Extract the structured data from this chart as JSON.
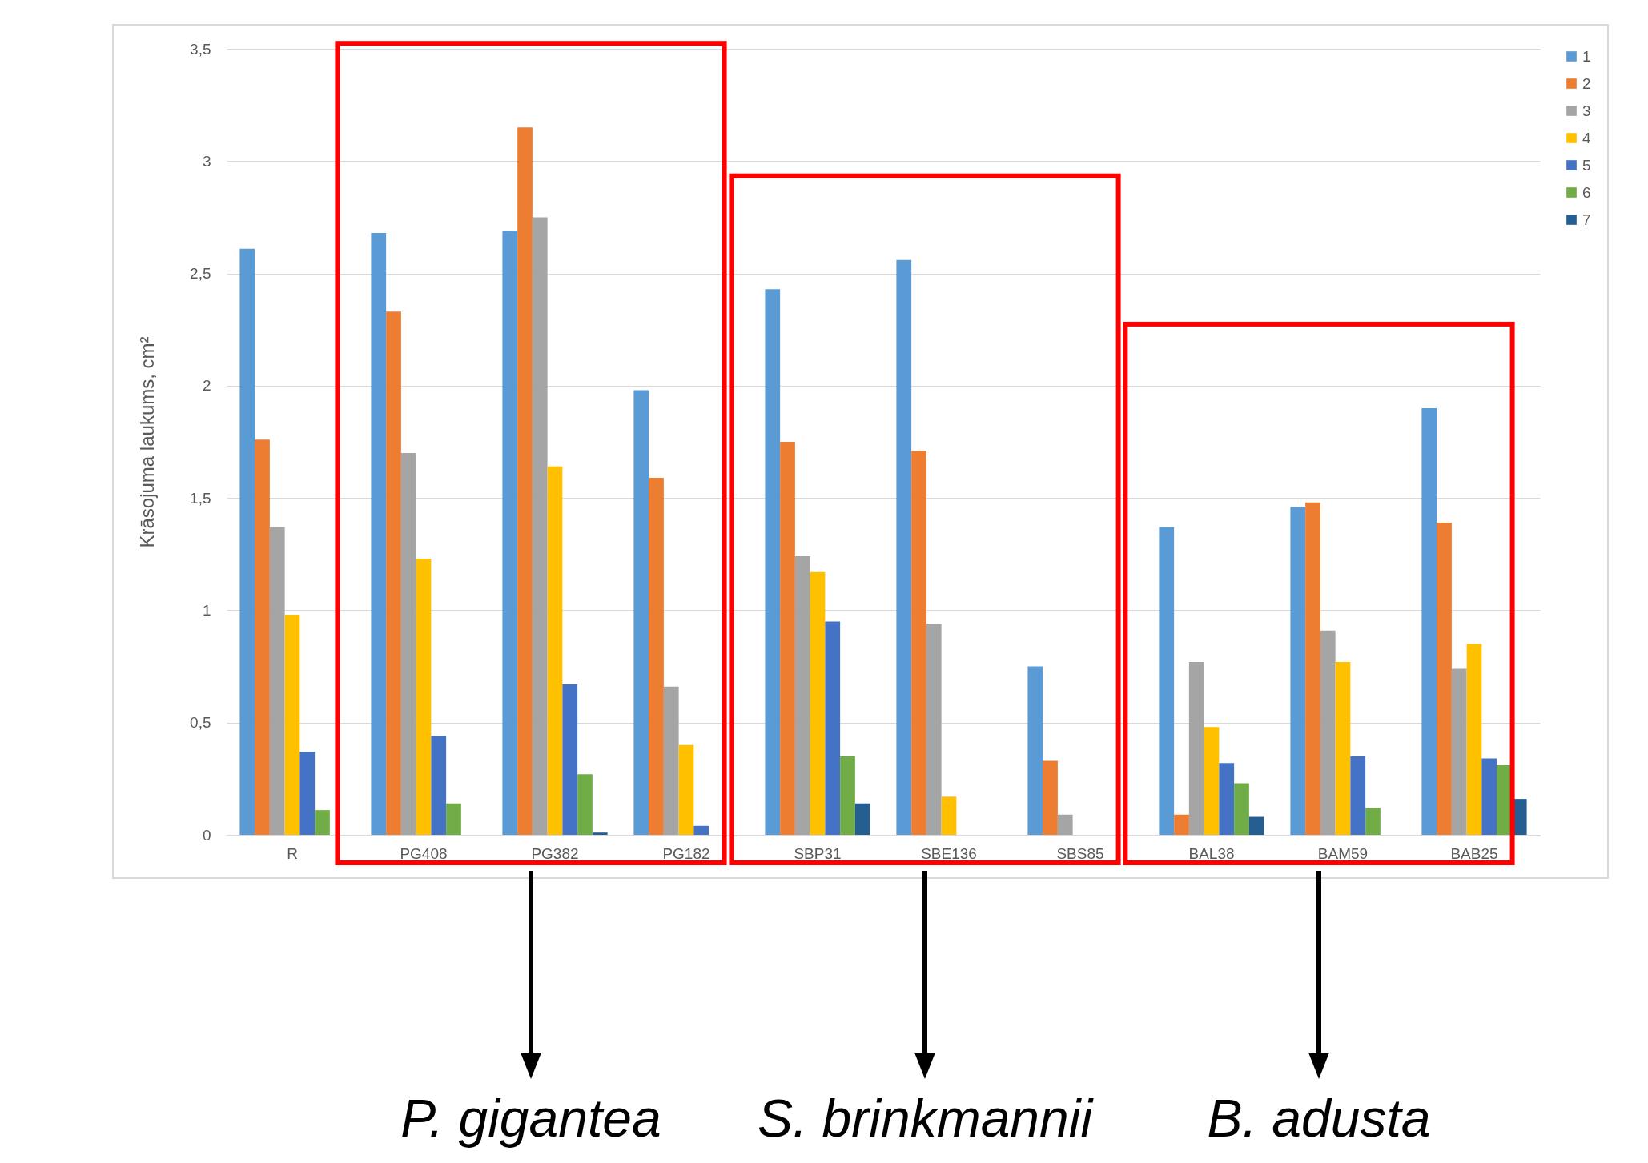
{
  "chart_data": {
    "type": "bar",
    "ylabel": "Krāsojuma laukums, cm²",
    "categories": [
      "R",
      "PG408",
      "PG382",
      "PG182",
      "SBP31",
      "SBE136",
      "SBS85",
      "BAL38",
      "BAM59",
      "BAB25"
    ],
    "series": [
      {
        "name": "1",
        "color": "#5b9bd5",
        "values": [
          2.61,
          2.68,
          2.69,
          1.98,
          2.43,
          2.56,
          0.75,
          1.37,
          1.46,
          1.9
        ]
      },
      {
        "name": "2",
        "color": "#ed7d31",
        "values": [
          1.76,
          2.33,
          3.15,
          1.59,
          1.75,
          1.71,
          0.33,
          0.09,
          1.48,
          1.39
        ]
      },
      {
        "name": "3",
        "color": "#a5a5a5",
        "values": [
          1.37,
          1.7,
          2.75,
          0.66,
          1.24,
          0.94,
          0.09,
          0.77,
          0.91,
          0.74
        ]
      },
      {
        "name": "4",
        "color": "#ffc000",
        "values": [
          0.98,
          1.23,
          1.64,
          0.4,
          1.17,
          0.17,
          null,
          0.48,
          0.77,
          0.85
        ]
      },
      {
        "name": "5",
        "color": "#4472c4",
        "values": [
          0.37,
          0.44,
          0.67,
          0.04,
          0.95,
          null,
          null,
          0.32,
          0.35,
          0.34
        ]
      },
      {
        "name": "6",
        "color": "#70ad47",
        "values": [
          0.11,
          0.14,
          0.27,
          null,
          0.35,
          null,
          null,
          0.23,
          0.12,
          0.31
        ]
      },
      {
        "name": "7",
        "color": "#255e91",
        "values": [
          null,
          null,
          0.01,
          null,
          0.14,
          null,
          null,
          0.08,
          null,
          0.16
        ]
      }
    ],
    "ylim": [
      0,
      3.5
    ],
    "yticks": [
      0,
      {
        "value": 0.5,
        "label": "0,5"
      },
      1,
      {
        "value": 1.5,
        "label": "1,5"
      },
      2,
      {
        "value": 2.5,
        "label": "2,5"
      },
      3,
      {
        "value": 3.5,
        "label": "3,5"
      }
    ],
    "grid": "y",
    "legend": "right",
    "annotations": [
      "P. gigantea",
      "S. brinkmannii",
      "B. adusta"
    ]
  }
}
